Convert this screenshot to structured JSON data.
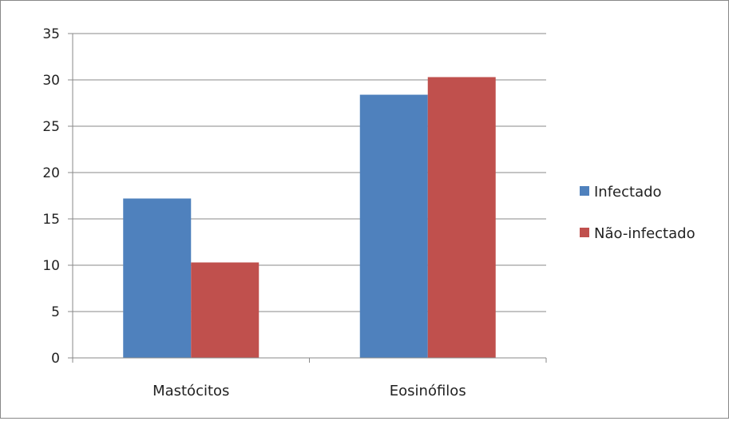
{
  "chart_data": {
    "type": "bar",
    "categories": [
      "Mastócitos",
      "Eosinófilos"
    ],
    "series": [
      {
        "name": "Infectado",
        "values": [
          17.2,
          28.4
        ],
        "color": "#4F81BD"
      },
      {
        "name": "Não-infectado",
        "values": [
          10.3,
          30.3
        ],
        "color": "#C0504D"
      }
    ],
    "title": "",
    "xlabel": "",
    "ylabel": "",
    "ylim": [
      0,
      35
    ],
    "yticks": [
      0,
      5,
      10,
      15,
      20,
      25,
      30,
      35
    ],
    "grid": true,
    "legend_position": "right"
  }
}
